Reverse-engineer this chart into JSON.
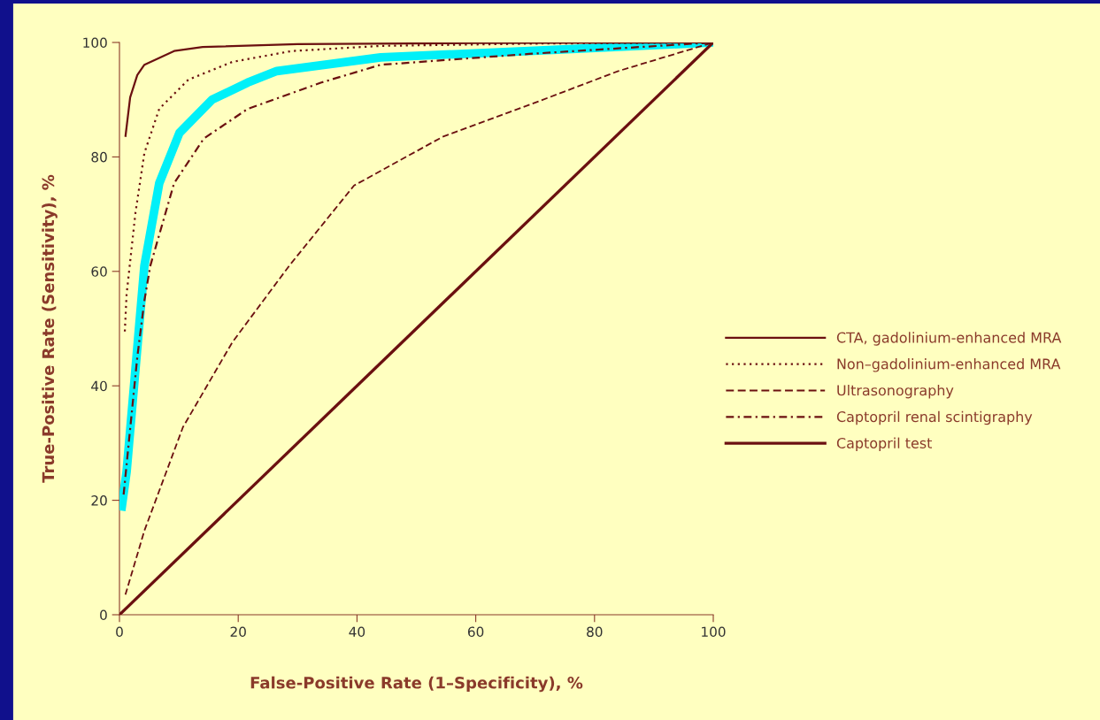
{
  "chart_data": {
    "type": "line",
    "xlabel": "False-Positive Rate (1–Specificity), %",
    "ylabel": "True-Positive Rate (Sensitivity), %",
    "xlim": [
      0,
      100
    ],
    "ylim": [
      0,
      100
    ],
    "xticks": [
      0,
      20,
      40,
      60,
      80,
      100
    ],
    "yticks": [
      0,
      20,
      40,
      60,
      80,
      100
    ],
    "grid": false,
    "legend": "right",
    "marker": "none",
    "series": [
      {
        "name": "CTA, gadolinium-enhanced MRA",
        "color": "#6b1010",
        "line_style": "solid",
        "x": [
          1,
          1.8,
          3,
          4.2,
          9.2,
          14,
          30,
          60,
          100
        ],
        "values": [
          83.5,
          90.4,
          94.3,
          96.1,
          98.5,
          99.2,
          99.7,
          99.9,
          100
        ]
      },
      {
        "name": "Non–gadolinium-enhanced MRA",
        "color": "#6b1010",
        "line_style": "dotted",
        "x": [
          0.9,
          1.2,
          2.7,
          4.2,
          6.7,
          11.6,
          19,
          29,
          44,
          70,
          100
        ],
        "values": [
          49.5,
          56,
          70.3,
          80.7,
          88.4,
          93.5,
          96.6,
          98.5,
          99.4,
          99.8,
          100
        ]
      },
      {
        "name": "Ultrasonography",
        "color": "#6b1010",
        "line_style": "dashed",
        "x": [
          1,
          4.2,
          10.7,
          19,
          28.6,
          39.5,
          54.4,
          69.3,
          84,
          100
        ],
        "values": [
          3.5,
          14.7,
          32.8,
          47.6,
          61,
          75,
          83.5,
          89.2,
          95,
          100
        ]
      },
      {
        "name": "Captopril renal scintigraphy",
        "color": "#6b1010",
        "line_style": "dashdot",
        "x": [
          0.7,
          3,
          4.2,
          5.2,
          9.2,
          14.2,
          21.6,
          34,
          44,
          69,
          100
        ],
        "values": [
          21,
          45,
          54.9,
          61,
          75.4,
          83.2,
          88.4,
          93,
          96.1,
          98,
          100
        ]
      },
      {
        "name": "Captopril test",
        "color": "#6b1010",
        "line_style": "solid",
        "x": [
          0,
          100
        ],
        "values": [
          0,
          100
        ]
      },
      {
        "color": "#00f0f8",
        "line_style": "solid",
        "x": [
          0.3,
          1.2,
          4.2,
          6.7,
          10.1,
          15.6,
          21.6,
          26.5,
          44,
          69,
          100
        ],
        "values": [
          18.2,
          25,
          61,
          75.4,
          84.2,
          90,
          93,
          95,
          97.4,
          98.5,
          100
        ]
      }
    ]
  }
}
